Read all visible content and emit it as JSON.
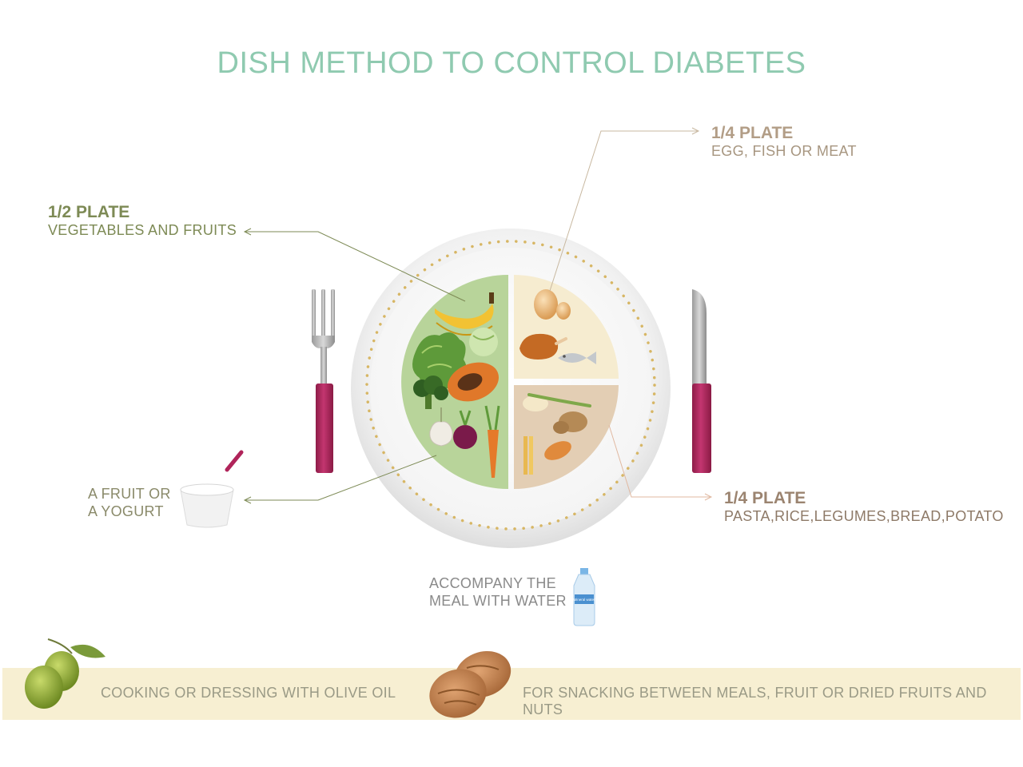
{
  "title": "DISH METHOD TO CONTROL DIABETES",
  "sections": {
    "vegetables": {
      "heading": "1/2 PLATE",
      "text": "VEGETABLES AND FRUITS"
    },
    "protein": {
      "heading": "1/4 PLATE",
      "text": "EGG, FISH OR MEAT"
    },
    "carbs": {
      "heading": "1/4 PLATE",
      "text": "PASTA,RICE,LEGUMES,BREAD,POTATO"
    }
  },
  "dessert": {
    "line1": "A FRUIT OR",
    "line2": "A YOGURT"
  },
  "water": {
    "line1": "ACCOMPANY THE",
    "line2": "MEAL WITH WATER",
    "bottle_label": "Mineral water"
  },
  "banner": {
    "oil_text": "COOKING OR DRESSING WITH OLIVE OIL",
    "snack_text": "FOR SNACKING BETWEEN MEALS, FRUIT OR DRIED FRUITS AND NUTS"
  },
  "colors": {
    "title": "#8fcab0",
    "veg_section": "#b8d49a",
    "protein_section": "#f6ecd0",
    "carb_section": "#e3ceb4",
    "banner": "#f7efd2",
    "cutlery_handle": "#b0245a"
  },
  "icons": [
    "fork-icon",
    "knife-icon",
    "yogurt-icon",
    "water-bottle-icon",
    "olive-icon",
    "walnut-icon"
  ]
}
